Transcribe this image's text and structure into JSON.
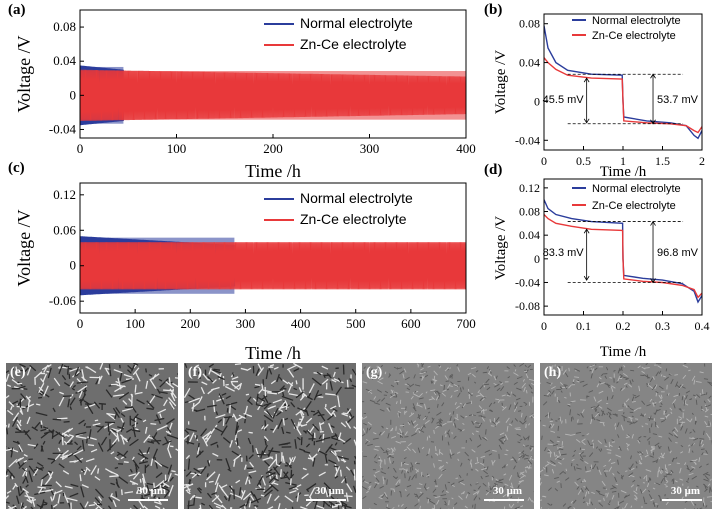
{
  "colors": {
    "normal": "#2b3d9c",
    "zn_ce": "#e8393a"
  },
  "chart_data": [
    {
      "panel": "(a)",
      "type": "line",
      "xlabel": "Time /h",
      "ylabel": "Voltage /V",
      "xlim": [
        0,
        400
      ],
      "ylim": [
        -0.05,
        0.1
      ],
      "xticks": [
        0,
        100,
        200,
        300,
        400
      ],
      "yticks": [
        -0.04,
        0,
        0.04,
        0.08
      ],
      "ytick_labels": [
        "-0.04",
        "0",
        "0.04",
        "0.08"
      ],
      "legend_placement": "top-right",
      "series": [
        {
          "name": "Normal electrolyte",
          "x_end": 45,
          "amp_start": 0.035,
          "amp_end": 0.03
        },
        {
          "name": "Zn-Ce electrolyte",
          "x_end": 400,
          "amp_start": 0.03,
          "amp_end": 0.022
        }
      ]
    },
    {
      "panel": "(b)",
      "type": "line",
      "xlabel": "Time /h",
      "ylabel": "Voltage /V",
      "xlim": [
        0,
        2
      ],
      "ylim": [
        -0.05,
        0.09
      ],
      "xticks": [
        0,
        0.5,
        1,
        1.5,
        2
      ],
      "yticks": [
        -0.04,
        0,
        0.04,
        0.08
      ],
      "ytick_labels": [
        "-0.04",
        "0",
        "0.04",
        "0.08"
      ],
      "legend_placement": "top-right",
      "annotations": [
        "45.5 mV",
        "53.7 mV"
      ],
      "series": [
        {
          "name": "Normal electrolyte",
          "x": [
            0,
            0.05,
            0.15,
            0.3,
            0.6,
            0.99,
            1.0,
            1.01,
            1.3,
            1.6,
            1.8,
            1.9,
            1.95,
            2.0
          ],
          "y": [
            0.078,
            0.055,
            0.04,
            0.032,
            0.028,
            0.027,
            0.0,
            -0.016,
            -0.02,
            -0.022,
            -0.025,
            -0.035,
            -0.038,
            -0.03
          ]
        },
        {
          "name": "Zn-Ce electrolyte",
          "x": [
            0,
            0.05,
            0.15,
            0.3,
            0.6,
            0.99,
            1.0,
            1.01,
            1.3,
            1.6,
            1.8,
            1.9,
            1.95,
            2.0
          ],
          "y": [
            0.045,
            0.04,
            0.033,
            0.027,
            0.024,
            0.023,
            0.0,
            -0.02,
            -0.022,
            -0.023,
            -0.025,
            -0.03,
            -0.032,
            -0.026
          ]
        }
      ]
    },
    {
      "panel": "(c)",
      "type": "line",
      "xlabel": "Time /h",
      "ylabel": "Voltage /V",
      "xlim": [
        0,
        700
      ],
      "ylim": [
        -0.08,
        0.14
      ],
      "xticks": [
        0,
        100,
        200,
        300,
        400,
        500,
        600,
        700
      ],
      "yticks": [
        -0.06,
        0,
        0.06,
        0.12
      ],
      "ytick_labels": [
        "-0.06",
        "0",
        "0.06",
        "0.12"
      ],
      "legend_placement": "top-right",
      "series": [
        {
          "name": "Normal electrolyte",
          "x_end": 280,
          "amp_start": 0.05,
          "amp_end": 0.035
        },
        {
          "name": "Zn-Ce electrolyte",
          "x_end": 700,
          "amp_start": 0.04,
          "amp_end": 0.04
        }
      ]
    },
    {
      "panel": "(d)",
      "type": "line",
      "xlabel": "Time /h",
      "ylabel": "Voltage /V",
      "xlim": [
        0,
        0.4
      ],
      "ylim": [
        -0.095,
        0.135
      ],
      "xticks": [
        0,
        0.1,
        0.2,
        0.3,
        0.4
      ],
      "yticks": [
        -0.08,
        -0.04,
        0,
        0.04,
        0.08,
        0.12
      ],
      "ytick_labels": [
        "-0.08",
        "-0.04",
        "0",
        "0.04",
        "0.08",
        "0.12"
      ],
      "legend_placement": "top-right",
      "annotations": [
        "83.3 mV",
        "96.8 mV"
      ],
      "series": [
        {
          "name": "Normal electrolyte",
          "x": [
            0,
            0.01,
            0.03,
            0.07,
            0.12,
            0.199,
            0.2,
            0.202,
            0.25,
            0.3,
            0.35,
            0.38,
            0.39,
            0.4
          ],
          "y": [
            0.1,
            0.085,
            0.075,
            0.068,
            0.063,
            0.06,
            0.0,
            -0.028,
            -0.033,
            -0.036,
            -0.042,
            -0.055,
            -0.073,
            -0.062
          ]
        },
        {
          "name": "Zn-Ce electrolyte",
          "x": [
            0,
            0.01,
            0.03,
            0.07,
            0.12,
            0.199,
            0.2,
            0.202,
            0.25,
            0.3,
            0.35,
            0.38,
            0.39,
            0.4
          ],
          "y": [
            0.075,
            0.068,
            0.06,
            0.055,
            0.05,
            0.048,
            0.0,
            -0.034,
            -0.038,
            -0.04,
            -0.045,
            -0.052,
            -0.065,
            -0.058
          ]
        }
      ]
    }
  ],
  "sem": [
    {
      "label": "(e)",
      "scale": "30 μm",
      "density": "high"
    },
    {
      "label": "(f)",
      "scale": "30 μm",
      "density": "high"
    },
    {
      "label": "(g)",
      "scale": "30 μm",
      "density": "low"
    },
    {
      "label": "(h)",
      "scale": "30 μm",
      "density": "low"
    }
  ]
}
